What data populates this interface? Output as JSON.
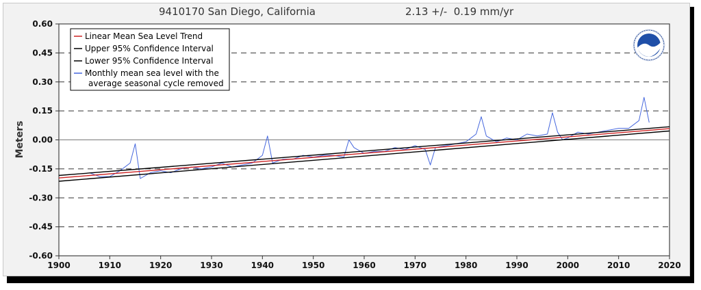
{
  "chart_data": {
    "type": "line",
    "title_left": "9410170 San Diego, California",
    "title_right": "2.13 +/-  0.19 mm/yr",
    "xlabel": "",
    "ylabel": "Meters",
    "xlim": [
      1900,
      2020
    ],
    "ylim": [
      -0.6,
      0.6
    ],
    "x_ticks": [
      1900,
      1910,
      1920,
      1930,
      1940,
      1950,
      1960,
      1970,
      1980,
      1990,
      2000,
      2010,
      2020
    ],
    "y_ticks": [
      0.6,
      0.45,
      0.3,
      0.15,
      0.0,
      -0.15,
      -0.3,
      -0.45,
      -0.6
    ],
    "y_tick_labels": [
      "0.60",
      "0.45",
      "0.30",
      "0.15",
      "0.00",
      "-0.15",
      "-0.30",
      "-0.45",
      "-0.60"
    ],
    "grid": "dashed horizontal lines at y ticks, solid line at zero",
    "legend_position": "top-left",
    "legend": [
      "Linear Mean Sea Level Trend",
      "Upper 95% Confidence Interval",
      "Lower 95% Confidence Interval",
      "Monthly mean sea level with the",
      "average seasonal cycle removed"
    ],
    "series": [
      {
        "name": "Linear Mean Sea Level Trend",
        "color": "#cc2222",
        "x": [
          1900,
          2020
        ],
        "y": [
          -0.197,
          0.058
        ]
      },
      {
        "name": "Upper 95% Confidence Interval",
        "color": "#000000",
        "x": [
          1900,
          2020
        ],
        "y": [
          -0.184,
          0.068
        ]
      },
      {
        "name": "Lower 95% Confidence Interval",
        "color": "#000000",
        "x": [
          1900,
          2020
        ],
        "y": [
          -0.214,
          0.046
        ]
      },
      {
        "name": "Monthly mean sea level with the average seasonal cycle removed",
        "color": "#4466dd",
        "x": [
          1906,
          1908,
          1910,
          1912,
          1914,
          1915,
          1916,
          1918,
          1920,
          1922,
          1924,
          1926,
          1928,
          1930,
          1932,
          1934,
          1936,
          1938,
          1940,
          1941,
          1942,
          1944,
          1946,
          1948,
          1950,
          1952,
          1954,
          1956,
          1957,
          1958,
          1960,
          1962,
          1964,
          1966,
          1968,
          1970,
          1972,
          1973,
          1974,
          1976,
          1978,
          1980,
          1982,
          1983,
          1984,
          1986,
          1988,
          1990,
          1992,
          1994,
          1996,
          1997,
          1998,
          1999,
          2000,
          2002,
          2004,
          2006,
          2008,
          2010,
          2012,
          2014,
          2015,
          2016
        ],
        "y": [
          -0.17,
          -0.19,
          -0.19,
          -0.16,
          -0.12,
          -0.02,
          -0.2,
          -0.17,
          -0.16,
          -0.17,
          -0.15,
          -0.14,
          -0.15,
          -0.14,
          -0.12,
          -0.14,
          -0.13,
          -0.12,
          -0.08,
          0.02,
          -0.12,
          -0.1,
          -0.1,
          -0.08,
          -0.09,
          -0.08,
          -0.08,
          -0.09,
          0.0,
          -0.04,
          -0.07,
          -0.06,
          -0.06,
          -0.04,
          -0.05,
          -0.03,
          -0.05,
          -0.13,
          -0.04,
          -0.03,
          -0.02,
          -0.01,
          0.03,
          0.12,
          0.02,
          -0.01,
          0.01,
          0.0,
          0.03,
          0.02,
          0.03,
          0.14,
          0.04,
          0.0,
          0.01,
          0.04,
          0.03,
          0.04,
          0.05,
          0.06,
          0.06,
          0.1,
          0.22,
          0.09
        ]
      }
    ]
  }
}
